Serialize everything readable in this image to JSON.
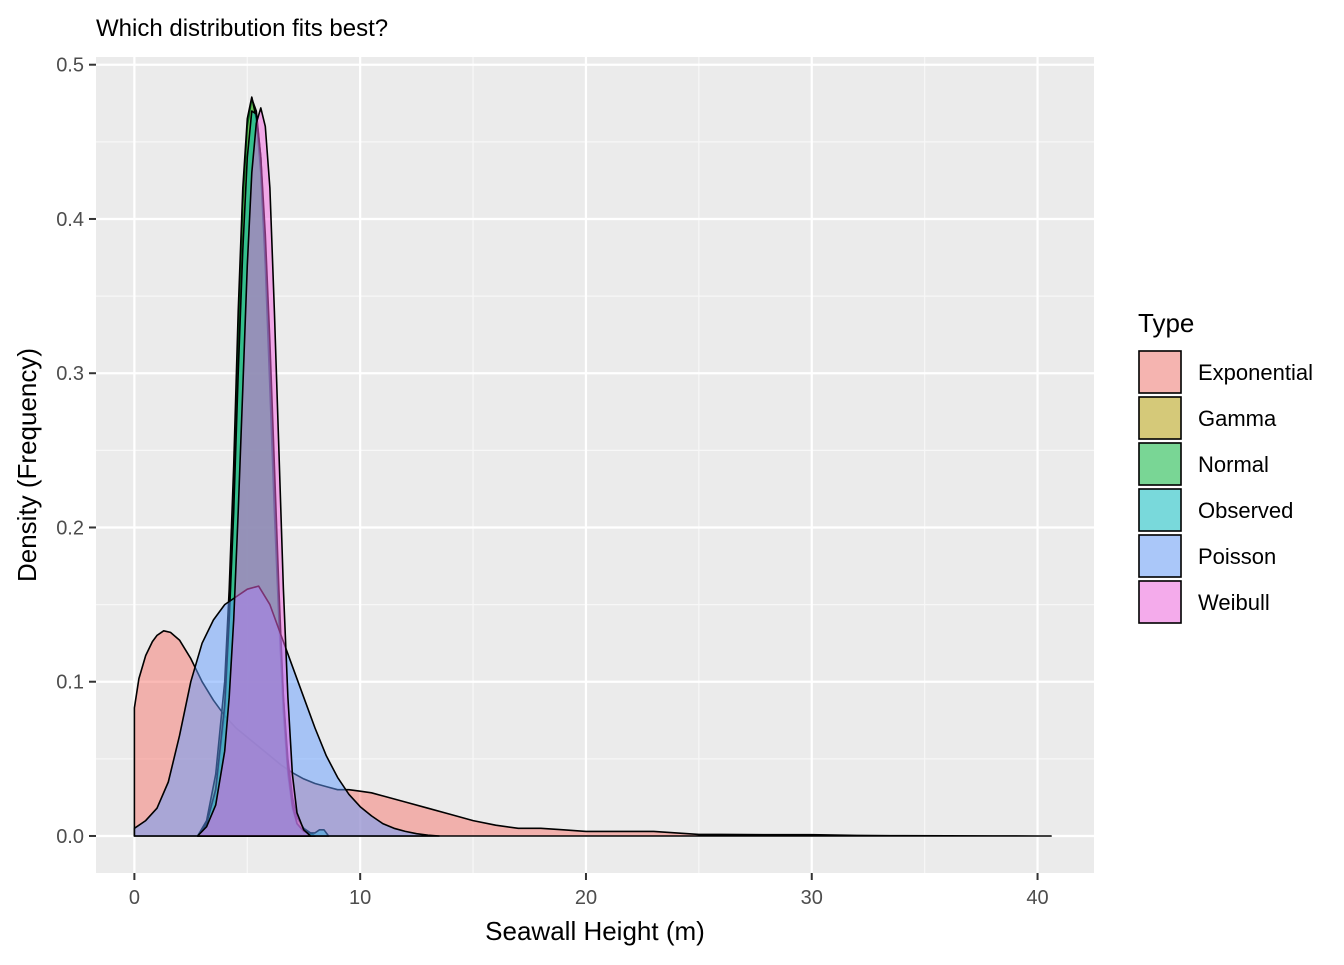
{
  "chart_data": {
    "type": "area",
    "title": "Which distribution fits best?",
    "xlabel": "Seawall Height (m)",
    "ylabel": "Density (Frequency)",
    "xlim": [
      -1.7,
      42.5
    ],
    "ylim": [
      -0.024,
      0.505
    ],
    "x_ticks": [
      0,
      10,
      20,
      30,
      40
    ],
    "x_tick_labels": [
      "0",
      "10",
      "20",
      "30",
      "40"
    ],
    "y_ticks": [
      0.0,
      0.1,
      0.2,
      0.3,
      0.4,
      0.5
    ],
    "y_tick_labels": [
      "0.0",
      "0.1",
      "0.2",
      "0.3",
      "0.4",
      "0.5"
    ],
    "grid": true,
    "legend": {
      "title": "Type",
      "position": "right"
    },
    "series": [
      {
        "name": "Exponential",
        "color": "#F8766D",
        "x": [
          0,
          0.2,
          0.5,
          0.8,
          1.0,
          1.3,
          1.6,
          2.0,
          2.5,
          3.0,
          3.5,
          4.0,
          4.5,
          5.0,
          5.5,
          6.0,
          6.5,
          7.0,
          7.5,
          8.0,
          8.5,
          9.0,
          9.5,
          10.0,
          10.5,
          11,
          12,
          13,
          14,
          15,
          16,
          17,
          18,
          19,
          20,
          21,
          22,
          23,
          24,
          25,
          26,
          28,
          30,
          32,
          34,
          36,
          38,
          40,
          40.6
        ],
        "y": [
          0.083,
          0.102,
          0.117,
          0.126,
          0.13,
          0.133,
          0.132,
          0.127,
          0.115,
          0.1,
          0.088,
          0.078,
          0.07,
          0.064,
          0.058,
          0.052,
          0.046,
          0.041,
          0.037,
          0.034,
          0.032,
          0.03,
          0.03,
          0.029,
          0.028,
          0.026,
          0.022,
          0.018,
          0.014,
          0.01,
          0.007,
          0.005,
          0.005,
          0.004,
          0.003,
          0.003,
          0.003,
          0.003,
          0.002,
          0.001,
          0.001,
          0.0008,
          0.0008,
          0.0004,
          0.0002,
          0.0001,
          5e-05,
          0.0,
          0.0
        ]
      },
      {
        "name": "Gamma",
        "color": "#B79F00",
        "x": [
          2.8,
          3.2,
          3.6,
          4.0,
          4.2,
          4.4,
          4.6,
          4.8,
          5.0,
          5.2,
          5.4,
          5.6,
          5.8,
          6.0,
          6.2,
          6.4,
          6.6,
          6.8,
          7.0,
          7.2,
          7.5,
          7.8,
          8.0
        ],
        "y": [
          0.0,
          0.008,
          0.03,
          0.08,
          0.14,
          0.22,
          0.32,
          0.41,
          0.46,
          0.478,
          0.47,
          0.44,
          0.38,
          0.3,
          0.22,
          0.15,
          0.09,
          0.05,
          0.025,
          0.012,
          0.005,
          0.002,
          0.0
        ]
      },
      {
        "name": "Normal",
        "color": "#00BA38",
        "x": [
          2.8,
          3.2,
          3.6,
          4.0,
          4.2,
          4.4,
          4.6,
          4.8,
          5.0,
          5.2,
          5.4,
          5.6,
          5.8,
          6.0,
          6.2,
          6.4,
          6.6,
          6.8,
          7.0,
          7.2,
          7.5,
          7.8,
          8.0
        ],
        "y": [
          0.0,
          0.01,
          0.04,
          0.1,
          0.16,
          0.24,
          0.34,
          0.42,
          0.465,
          0.479,
          0.465,
          0.43,
          0.37,
          0.29,
          0.21,
          0.14,
          0.08,
          0.04,
          0.018,
          0.008,
          0.003,
          0.001,
          0.0
        ]
      },
      {
        "name": "Observed",
        "color": "#00BFC4",
        "x": [
          2.8,
          3.2,
          3.6,
          4.0,
          4.2,
          4.4,
          4.6,
          4.8,
          5.0,
          5.2,
          5.4,
          5.6,
          5.8,
          6.0,
          6.2,
          6.4,
          6.6,
          6.8,
          7.0,
          7.2,
          7.5,
          7.8,
          8.0,
          8.2,
          8.4,
          8.6
        ],
        "y": [
          0.0,
          0.008,
          0.03,
          0.085,
          0.14,
          0.21,
          0.3,
          0.38,
          0.44,
          0.47,
          0.468,
          0.44,
          0.39,
          0.32,
          0.24,
          0.16,
          0.09,
          0.045,
          0.02,
          0.008,
          0.003,
          0.002,
          0.002,
          0.004,
          0.004,
          0.0
        ]
      },
      {
        "name": "Poisson",
        "color": "#619CFF",
        "x": [
          0,
          0.5,
          1.0,
          1.5,
          2.0,
          2.5,
          3.0,
          3.5,
          4.0,
          4.5,
          5.0,
          5.5,
          6.0,
          6.5,
          7.0,
          7.5,
          8.0,
          8.5,
          9.0,
          9.5,
          10.0,
          10.5,
          11.0,
          11.5,
          12.0,
          12.5,
          13.0,
          13.5
        ],
        "y": [
          0.005,
          0.01,
          0.018,
          0.035,
          0.065,
          0.1,
          0.125,
          0.14,
          0.15,
          0.155,
          0.16,
          0.162,
          0.15,
          0.13,
          0.11,
          0.09,
          0.07,
          0.052,
          0.038,
          0.027,
          0.019,
          0.013,
          0.008,
          0.005,
          0.003,
          0.0015,
          0.0005,
          0.0
        ]
      },
      {
        "name": "Weibull",
        "color": "#F564E3",
        "x": [
          2.8,
          3.2,
          3.6,
          4.0,
          4.2,
          4.4,
          4.6,
          4.8,
          5.0,
          5.2,
          5.4,
          5.6,
          5.8,
          6.0,
          6.2,
          6.4,
          6.6,
          6.8,
          7.0,
          7.2,
          7.5,
          7.8
        ],
        "y": [
          0.0,
          0.006,
          0.02,
          0.055,
          0.09,
          0.14,
          0.21,
          0.29,
          0.37,
          0.43,
          0.462,
          0.472,
          0.46,
          0.42,
          0.34,
          0.25,
          0.16,
          0.09,
          0.04,
          0.015,
          0.004,
          0.0
        ]
      }
    ]
  }
}
